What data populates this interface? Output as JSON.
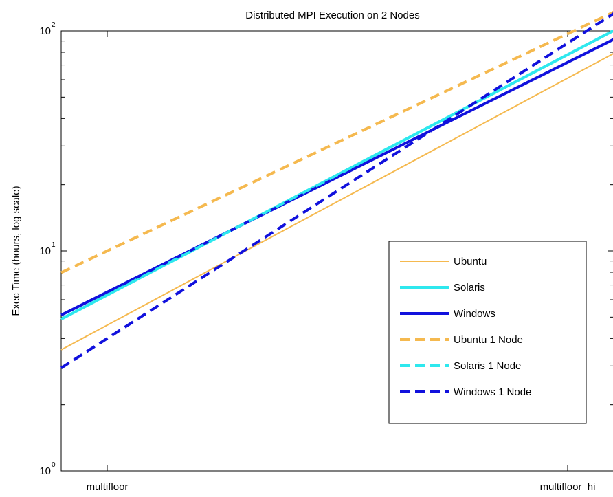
{
  "chart_data": {
    "type": "line",
    "title": "Distributed MPI Execution on 2 Nodes",
    "xlabel": "",
    "ylabel": "Exec Time (hours, log scale)",
    "yscale": "log",
    "ylim": [
      1,
      100
    ],
    "y_ticks": [
      {
        "value": 1,
        "base": "10",
        "exp": "0"
      },
      {
        "value": 10,
        "base": "10",
        "exp": "1"
      },
      {
        "value": 100,
        "base": "10",
        "exp": "2"
      }
    ],
    "categories": [
      "multifloor",
      "multifloor_hi"
    ],
    "x_range": [
      -0.1,
      1.1
    ],
    "line_x": [
      -0.1,
      1.1
    ],
    "grid": false,
    "legend_position": "center-right",
    "series": [
      {
        "name": "Ubuntu",
        "values": [
          4.6,
          61
        ],
        "color": "#f5b94f",
        "style": "solid",
        "width": 2
      },
      {
        "name": "Solaris",
        "values": [
          6.3,
          78
        ],
        "color": "#2ee8ee",
        "style": "solid",
        "width": 4
      },
      {
        "name": "Windows",
        "values": [
          6.5,
          72
        ],
        "color": "#1111dd",
        "style": "solid",
        "width": 4
      },
      {
        "name": "Ubuntu 1 Node",
        "values": [
          10,
          97
        ],
        "color": "#f5b94f",
        "style": "dashed",
        "width": 4
      },
      {
        "name": "Solaris 1 Node",
        "values": [
          6.3,
          78
        ],
        "color": "#2ee8ee",
        "style": "dashed",
        "width": 4
      },
      {
        "name": "Windows 1 Node",
        "values": [
          4.0,
          88
        ],
        "color": "#1111dd",
        "style": "dashed",
        "width": 4
      }
    ]
  }
}
